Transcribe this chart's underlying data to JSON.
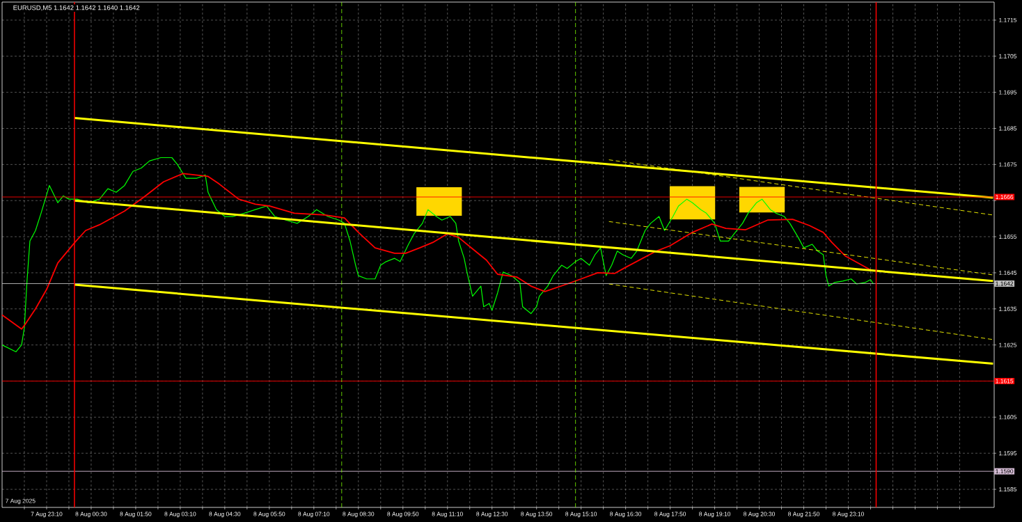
{
  "chart_data": {
    "type": "line",
    "title": "EURUSD,M5  1.1642 1.1642 1.1640 1.1642",
    "annotations": [
      "7 Aug 2025"
    ],
    "xlim": [
      "2025-08-07T21:50",
      "2025-08-09T03:32"
    ],
    "ylim": [
      1.158,
      1.172
    ],
    "xticks": [
      {
        "value": "2025-08-07T22:30",
        "label": null
      },
      {
        "value": "2025-08-07T23:10",
        "label": "7 Aug 23:10"
      },
      {
        "value": "2025-08-07T23:50",
        "label": null
      },
      {
        "value": "2025-08-08T00:30",
        "label": "8 Aug 00:30"
      },
      {
        "value": "2025-08-08T01:10",
        "label": null
      },
      {
        "value": "2025-08-08T01:50",
        "label": "8 Aug 01:50"
      },
      {
        "value": "2025-08-08T02:30",
        "label": null
      },
      {
        "value": "2025-08-08T03:10",
        "label": "8 Aug 03:10"
      },
      {
        "value": "2025-08-08T03:50",
        "label": null
      },
      {
        "value": "2025-08-08T04:30",
        "label": "8 Aug 04:30"
      },
      {
        "value": "2025-08-08T05:10",
        "label": null
      },
      {
        "value": "2025-08-08T05:50",
        "label": "8 Aug 05:50"
      },
      {
        "value": "2025-08-08T06:30",
        "label": null
      },
      {
        "value": "2025-08-08T07:10",
        "label": "8 Aug 07:10"
      },
      {
        "value": "2025-08-08T07:50",
        "label": null
      },
      {
        "value": "2025-08-08T08:30",
        "label": "8 Aug 08:30"
      },
      {
        "value": "2025-08-08T09:10",
        "label": null
      },
      {
        "value": "2025-08-08T09:50",
        "label": "8 Aug 09:50"
      },
      {
        "value": "2025-08-08T10:30",
        "label": null
      },
      {
        "value": "2025-08-08T11:10",
        "label": "8 Aug 11:10"
      },
      {
        "value": "2025-08-08T11:50",
        "label": null
      },
      {
        "value": "2025-08-08T12:30",
        "label": "8 Aug 12:30"
      },
      {
        "value": "2025-08-08T13:10",
        "label": null
      },
      {
        "value": "2025-08-08T13:50",
        "label": "8 Aug 13:50"
      },
      {
        "value": "2025-08-08T14:30",
        "label": null
      },
      {
        "value": "2025-08-08T15:10",
        "label": "8 Aug 15:10"
      },
      {
        "value": "2025-08-08T15:50",
        "label": null
      },
      {
        "value": "2025-08-08T16:30",
        "label": "8 Aug 16:30"
      },
      {
        "value": "2025-08-08T17:10",
        "label": null
      },
      {
        "value": "2025-08-08T17:50",
        "label": "8 Aug 17:50"
      },
      {
        "value": "2025-08-08T18:30",
        "label": null
      },
      {
        "value": "2025-08-08T19:10",
        "label": "8 Aug 19:10"
      },
      {
        "value": "2025-08-08T19:50",
        "label": null
      },
      {
        "value": "2025-08-08T20:30",
        "label": "8 Aug 20:30"
      },
      {
        "value": "2025-08-08T21:10",
        "label": null
      },
      {
        "value": "2025-08-08T21:50",
        "label": "8 Aug 21:50"
      },
      {
        "value": "2025-08-08T22:30",
        "label": null
      },
      {
        "value": "2025-08-08T23:10",
        "label": "8 Aug 23:10"
      },
      {
        "value": "2025-08-08T23:50",
        "label": null
      },
      {
        "value": "2025-08-09T00:30",
        "label": null
      },
      {
        "value": "2025-08-09T01:10",
        "label": null
      },
      {
        "value": "2025-08-09T01:50",
        "label": null
      },
      {
        "value": "2025-08-09T02:30",
        "label": null
      }
    ],
    "yticks": [
      1.1585,
      1.1595,
      1.1605,
      {
        "value": 1.1615,
        "label": null
      },
      1.1625,
      1.1635,
      1.1645,
      1.1655,
      {
        "value": 1.1665,
        "label": null
      },
      1.1675,
      1.1685,
      1.1695,
      1.1705,
      1.1715
    ],
    "grid": true,
    "series": [
      {
        "type": "bar",
        "color": "#ffd700",
        "x": [
          "2025-08-08T10:55",
          "2025-08-08T18:30",
          "2025-08-08T20:35"
        ],
        "base": [
          1.16608,
          1.16598,
          1.16617
        ],
        "values": [
          0.00079,
          0.00092,
          0.00071
        ]
      },
      {
        "color": "#00ff00",
        "x": [
          "2025-08-07T21:50",
          "2025-08-07T22:15",
          "2025-08-07T22:25",
          "2025-08-07T22:30",
          "2025-08-07T22:35",
          "2025-08-07T22:40",
          "2025-08-07T22:50",
          "2025-08-07T23:00",
          "2025-08-07T23:15",
          "2025-08-07T23:30",
          "2025-08-07T23:40",
          "2025-08-07T23:50",
          "2025-08-08T00:05",
          "2025-08-08T00:25",
          "2025-08-08T00:45",
          "2025-08-08T01:00",
          "2025-08-08T01:15",
          "2025-08-08T01:30",
          "2025-08-08T01:45",
          "2025-08-08T02:00",
          "2025-08-08T02:15",
          "2025-08-08T02:35",
          "2025-08-08T02:55",
          "2025-08-08T03:05",
          "2025-08-08T03:20",
          "2025-08-08T03:40",
          "2025-08-08T03:55",
          "2025-08-08T04:00",
          "2025-08-08T04:15",
          "2025-08-08T04:30",
          "2025-08-08T04:45",
          "2025-08-08T05:05",
          "2025-08-08T05:25",
          "2025-08-08T05:45",
          "2025-08-08T06:00",
          "2025-08-08T06:20",
          "2025-08-08T06:40",
          "2025-08-08T07:00",
          "2025-08-08T07:15",
          "2025-08-08T07:35",
          "2025-08-08T07:55",
          "2025-08-08T08:05",
          "2025-08-08T08:15",
          "2025-08-08T08:25",
          "2025-08-08T08:30",
          "2025-08-08T08:45",
          "2025-08-08T09:00",
          "2025-08-08T09:10",
          "2025-08-08T09:20",
          "2025-08-08T09:35",
          "2025-08-08T09:45",
          "2025-08-08T10:00",
          "2025-08-08T10:10",
          "2025-08-08T10:25",
          "2025-08-08T10:35",
          "2025-08-08T10:50",
          "2025-08-08T11:00",
          "2025-08-08T11:15",
          "2025-08-08T11:25",
          "2025-08-08T11:30",
          "2025-08-08T11:40",
          "2025-08-08T11:45",
          "2025-08-08T11:55",
          "2025-08-08T12:10",
          "2025-08-08T12:15",
          "2025-08-08T12:25",
          "2025-08-08T12:30",
          "2025-08-08T12:40",
          "2025-08-08T12:50",
          "2025-08-08T13:05",
          "2025-08-08T13:20",
          "2025-08-08T13:25",
          "2025-08-08T13:40",
          "2025-08-08T13:50",
          "2025-08-08T13:55",
          "2025-08-08T14:10",
          "2025-08-08T14:20",
          "2025-08-08T14:35",
          "2025-08-08T14:45",
          "2025-08-08T15:00",
          "2025-08-08T15:10",
          "2025-08-08T15:25",
          "2025-08-08T15:35",
          "2025-08-08T15:45",
          "2025-08-08T15:55",
          "2025-08-08T16:05",
          "2025-08-08T16:15",
          "2025-08-08T16:25",
          "2025-08-08T16:40",
          "2025-08-08T16:50",
          "2025-08-08T17:05",
          "2025-08-08T17:15",
          "2025-08-08T17:30",
          "2025-08-08T17:40",
          "2025-08-08T17:55",
          "2025-08-08T18:05",
          "2025-08-08T18:20",
          "2025-08-08T18:30",
          "2025-08-08T18:45",
          "2025-08-08T18:55",
          "2025-08-08T19:10",
          "2025-08-08T19:20",
          "2025-08-08T19:35",
          "2025-08-08T19:45",
          "2025-08-08T20:00",
          "2025-08-08T20:10",
          "2025-08-08T20:25",
          "2025-08-08T20:35",
          "2025-08-08T20:50",
          "2025-08-08T21:00",
          "2025-08-08T21:15",
          "2025-08-08T21:25",
          "2025-08-08T21:40",
          "2025-08-08T21:50",
          "2025-08-08T22:05",
          "2025-08-08T22:15",
          "2025-08-08T22:25",
          "2025-08-08T22:30",
          "2025-08-08T22:35",
          "2025-08-08T22:45",
          "2025-08-08T23:00",
          "2025-08-08T23:15",
          "2025-08-08T23:25",
          "2025-08-08T23:40",
          "2025-08-08T23:50",
          "2025-08-08T23:55"
        ],
        "values": [
          1.1625,
          1.16231,
          1.1625,
          1.16298,
          1.16433,
          1.16538,
          1.16567,
          1.16615,
          1.16692,
          1.16644,
          1.16663,
          1.16654,
          1.16654,
          1.16644,
          1.16654,
          1.16683,
          1.16673,
          1.16692,
          1.16731,
          1.1674,
          1.1676,
          1.16769,
          1.16769,
          1.1675,
          1.16712,
          1.16712,
          1.16721,
          1.16673,
          1.16625,
          1.16606,
          1.16606,
          1.16615,
          1.16625,
          1.16635,
          1.16606,
          1.16596,
          1.16587,
          1.16606,
          1.16625,
          1.16606,
          1.16596,
          1.16587,
          1.16538,
          1.16471,
          1.16442,
          1.16433,
          1.16433,
          1.16471,
          1.16481,
          1.1649,
          1.16481,
          1.16529,
          1.16558,
          1.16587,
          1.16625,
          1.16606,
          1.16596,
          1.16606,
          1.16587,
          1.16538,
          1.1649,
          1.16452,
          1.16385,
          1.16413,
          1.16356,
          1.16365,
          1.16346,
          1.16394,
          1.16452,
          1.16442,
          1.16423,
          1.16356,
          1.16337,
          1.16356,
          1.16385,
          1.16413,
          1.16442,
          1.16471,
          1.16462,
          1.16481,
          1.1649,
          1.16471,
          1.165,
          1.16519,
          1.16442,
          1.16471,
          1.1651,
          1.165,
          1.1649,
          1.1651,
          1.16567,
          1.16587,
          1.16606,
          1.16567,
          1.16606,
          1.16635,
          1.16654,
          1.16644,
          1.16625,
          1.16615,
          1.16587,
          1.16538,
          1.16538,
          1.16558,
          1.16587,
          1.16615,
          1.16644,
          1.16654,
          1.16625,
          1.16615,
          1.16606,
          1.16587,
          1.16548,
          1.16519,
          1.16529,
          1.1651,
          1.165,
          1.16442,
          1.16413,
          1.16423,
          1.16427,
          1.16433,
          1.16419,
          1.16423,
          1.16431,
          1.16419
        ]
      },
      {
        "color": "#ff0000",
        "x": [
          "2025-08-07T21:50",
          "2025-08-07T22:25",
          "2025-08-07T22:30",
          "2025-08-07T22:50",
          "2025-08-07T23:10",
          "2025-08-07T23:30",
          "2025-08-08T00:00",
          "2025-08-08T00:20",
          "2025-08-08T00:45",
          "2025-08-08T01:30",
          "2025-08-08T02:05",
          "2025-08-08T02:40",
          "2025-08-08T03:15",
          "2025-08-08T04:00",
          "2025-08-08T04:20",
          "2025-08-08T04:55",
          "2025-08-08T05:25",
          "2025-08-08T05:50",
          "2025-08-08T06:35",
          "2025-08-08T07:30",
          "2025-08-08T08:05",
          "2025-08-08T08:30",
          "2025-08-08T09:00",
          "2025-08-08T09:35",
          "2025-08-08T09:55",
          "2025-08-08T10:20",
          "2025-08-08T10:45",
          "2025-08-08T11:10",
          "2025-08-08T11:30",
          "2025-08-08T12:00",
          "2025-08-08T12:20",
          "2025-08-08T12:40",
          "2025-08-08T13:15",
          "2025-08-08T13:40",
          "2025-08-08T14:05",
          "2025-08-08T14:45",
          "2025-08-08T15:10",
          "2025-08-08T15:40",
          "2025-08-08T16:10",
          "2025-08-08T16:30",
          "2025-08-08T17:25",
          "2025-08-08T17:50",
          "2025-08-08T18:30",
          "2025-08-08T19:05",
          "2025-08-08T19:30",
          "2025-08-08T20:05",
          "2025-08-08T20:45",
          "2025-08-08T21:30",
          "2025-08-08T22:00",
          "2025-08-08T22:25",
          "2025-08-08T22:40",
          "2025-08-08T23:05",
          "2025-08-08T23:30",
          "2025-08-08T23:50"
        ],
        "values": [
          1.16333,
          1.16294,
          1.16304,
          1.1635,
          1.16404,
          1.16477,
          1.16533,
          1.16567,
          1.16583,
          1.16621,
          1.1666,
          1.16702,
          1.16725,
          1.16717,
          1.16696,
          1.16654,
          1.1664,
          1.16635,
          1.16615,
          1.1661,
          1.16602,
          1.16562,
          1.16519,
          1.16504,
          1.16504,
          1.16519,
          1.16535,
          1.16558,
          1.16548,
          1.1651,
          1.16485,
          1.16446,
          1.16438,
          1.16413,
          1.16398,
          1.16419,
          1.16433,
          1.1645,
          1.16448,
          1.16465,
          1.1651,
          1.16525,
          1.16562,
          1.16585,
          1.16573,
          1.16569,
          1.16596,
          1.16598,
          1.16581,
          1.16562,
          1.16535,
          1.16496,
          1.16475,
          1.16458
        ]
      },
      {
        "color": "#ffff00",
        "x": [
          "2025-08-08T00:00",
          "2025-08-09T03:30"
        ],
        "values": [
          1.16879,
          1.16658
        ]
      },
      {
        "color": "#ffff00",
        "x": [
          "2025-08-08T00:00",
          "2025-08-09T03:30"
        ],
        "values": [
          1.1665,
          1.16427
        ]
      },
      {
        "color": "#ffff00",
        "x": [
          "2025-08-08T00:00",
          "2025-08-09T03:30"
        ],
        "values": [
          1.16417,
          1.16198
        ]
      },
      {
        "color": "#ffff00",
        "line_style": "dashed",
        "x": [
          "2025-08-08T16:00",
          "2025-08-09T03:30"
        ],
        "values": [
          1.16763,
          1.1661
        ]
      },
      {
        "color": "#ffff00",
        "line_style": "dashed",
        "x": [
          "2025-08-08T16:00",
          "2025-08-09T03:30"
        ],
        "values": [
          1.16592,
          1.16444
        ]
      },
      {
        "color": "#ffff00",
        "line_style": "dashed",
        "x": [
          "2025-08-08T16:00",
          "2025-08-09T03:30"
        ],
        "values": [
          1.16419,
          1.16265
        ]
      }
    ],
    "ref_lines": [
      {
        "axis": "y",
        "value": 1.1666,
        "label": "1.1666",
        "color": "#ff0000"
      },
      {
        "axis": "y",
        "value": 1.1642,
        "label": "1.1642",
        "color": "#c0c0c0"
      },
      {
        "axis": "y",
        "value": 1.1615,
        "label": "1.1615",
        "color": "#ff0000"
      },
      {
        "axis": "y",
        "value": 1.159,
        "label": "1.1590",
        "color": "#d8bfd8"
      },
      {
        "axis": "x",
        "value": "2025-08-08T00:00",
        "color": "#ff0000"
      },
      {
        "axis": "x",
        "value": "2025-08-09T00:00",
        "color": "#ff0000"
      },
      {
        "axis": "x",
        "value": "2025-08-08T08:00",
        "color": "#7cfc00",
        "line_style": "dashed"
      },
      {
        "axis": "x",
        "value": "2025-08-08T15:00",
        "color": "#7cfc00",
        "line_style": "dashed"
      }
    ]
  }
}
